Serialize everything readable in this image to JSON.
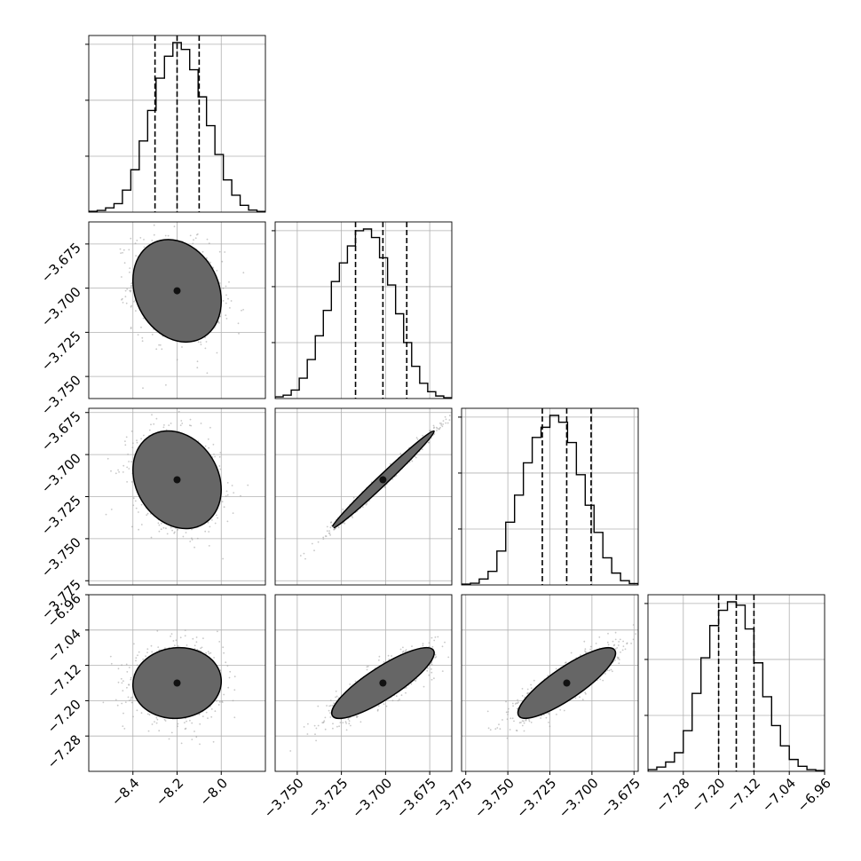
{
  "chart_data": {
    "type": "corner",
    "grid": true,
    "quantile_lines": "dashed",
    "parameters": [
      {
        "range": [
          -8.6,
          -7.8
        ],
        "ticks": [
          -8.4,
          -8.2,
          -8.0
        ],
        "tick_labels": [
          "−8.4",
          "−8.2",
          "−8.0"
        ],
        "quantiles": [
          -8.3,
          -8.2,
          -8.1
        ],
        "mean": -8.2,
        "sd": 0.1
      },
      {
        "range": [
          -3.7625,
          -3.6625
        ],
        "ticks": [
          -3.75,
          -3.725,
          -3.7,
          -3.675
        ],
        "tick_labels": [
          "−3.750",
          "−3.725",
          "−3.700",
          "−3.675"
        ],
        "quantiles": [
          -3.717,
          -3.7015,
          -3.688
        ],
        "mean": -3.7015,
        "sd": 0.0145
      },
      {
        "range": [
          -3.7775,
          -3.6725
        ],
        "ticks": [
          -3.775,
          -3.75,
          -3.725,
          -3.7,
          -3.675
        ],
        "tick_labels": [
          "−3.775",
          "−3.750",
          "−3.725",
          "−3.700",
          "−3.675"
        ],
        "quantiles": [
          -3.7295,
          -3.715,
          -3.7005
        ],
        "mean": -3.715,
        "sd": 0.0145
      },
      {
        "range": [
          -7.36,
          -6.96
        ],
        "ticks": [
          -7.28,
          -7.2,
          -7.12,
          -7.04,
          -6.96
        ],
        "tick_labels": [
          "−7.28",
          "−7.20",
          "−7.12",
          "−7.04",
          "−6.96"
        ],
        "quantiles": [
          -7.2,
          -7.16,
          -7.12
        ],
        "mean": -7.16,
        "sd": 0.04
      }
    ],
    "correlations": {
      "1-0": -0.2,
      "2-0": -0.2,
      "2-1": 0.99,
      "3-0": 0.05,
      "3-1": 0.85,
      "3-2": 0.85
    },
    "histograms": [
      [
        0.005,
        0.01,
        0.025,
        0.05,
        0.13,
        0.25,
        0.42,
        0.6,
        0.79,
        0.92,
        1.0,
        0.96,
        0.84,
        0.68,
        0.51,
        0.34,
        0.19,
        0.1,
        0.04,
        0.012,
        0.004
      ],
      [
        0.01,
        0.02,
        0.05,
        0.12,
        0.23,
        0.37,
        0.52,
        0.69,
        0.8,
        0.9,
        0.99,
        1.0,
        0.95,
        0.83,
        0.67,
        0.5,
        0.33,
        0.19,
        0.09,
        0.04,
        0.015,
        0.005
      ],
      [
        0.005,
        0.01,
        0.035,
        0.08,
        0.2,
        0.37,
        0.53,
        0.72,
        0.87,
        0.93,
        1.0,
        0.96,
        0.84,
        0.65,
        0.47,
        0.31,
        0.16,
        0.07,
        0.025,
        0.008
      ],
      [
        0.01,
        0.025,
        0.055,
        0.11,
        0.24,
        0.46,
        0.67,
        0.86,
        0.95,
        1.0,
        0.98,
        0.84,
        0.64,
        0.44,
        0.27,
        0.15,
        0.07,
        0.03,
        0.01,
        0.005
      ]
    ]
  }
}
